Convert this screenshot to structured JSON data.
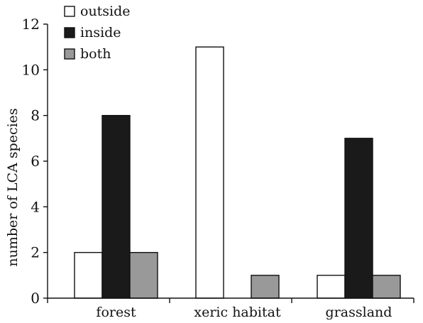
{
  "chart_data": {
    "type": "bar",
    "title": "",
    "xlabel": "",
    "ylabel": "number of LCA species",
    "categories": [
      "forest",
      "xeric habitat",
      "grassland"
    ],
    "series": [
      {
        "name": "outside",
        "color": "#ffffff",
        "values": [
          2,
          11,
          1
        ]
      },
      {
        "name": "inside",
        "color": "#1a1a1a",
        "values": [
          8,
          0,
          7
        ]
      },
      {
        "name": "both",
        "color": "#999999",
        "values": [
          2,
          1,
          1
        ]
      }
    ],
    "ylim": [
      0,
      12
    ],
    "yticks": [
      0,
      2,
      4,
      6,
      8,
      10,
      12
    ],
    "grid": false,
    "legend": "top-left"
  }
}
